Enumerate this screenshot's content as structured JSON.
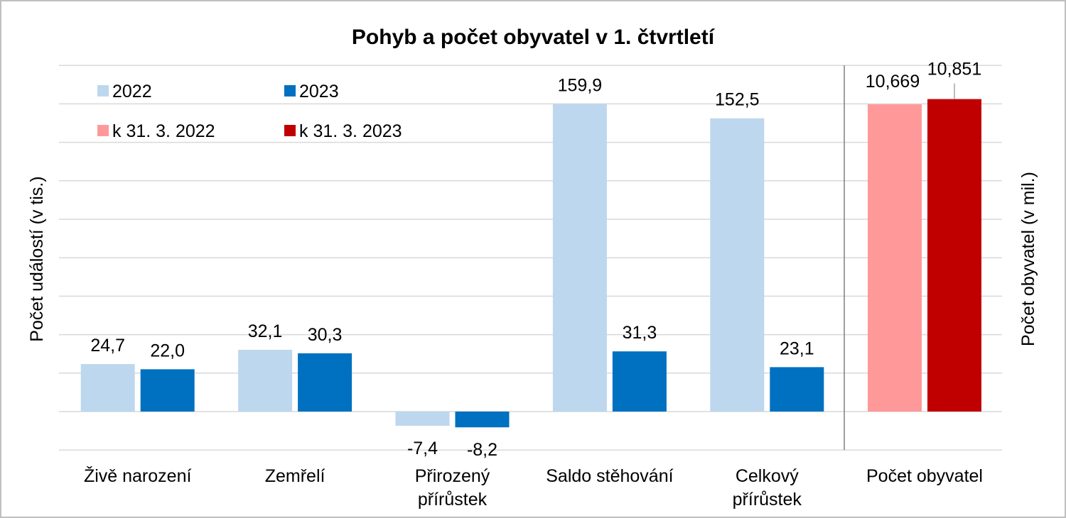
{
  "colors": {
    "y2022": "#bdd7ee",
    "y2023": "#0070c0",
    "pop2022": "#ff9999",
    "pop2023": "#c00000",
    "grid": "#d9d9d9",
    "frame": "#bfbfbf",
    "divider": "#7f7f7f"
  },
  "chart_data": {
    "type": "bar",
    "title": "Pohyb a počet obyvatel v 1. čtvrtletí",
    "ylabel_left": "Počet událostí (v tis.)",
    "ylabel_right": "Počet obyvatel (v mil.)",
    "ylim_left": [
      -20,
      180
    ],
    "ylim_right": [
      0,
      12
    ],
    "grid": true,
    "legend_position": "top-left",
    "categories": [
      [
        "Živě narození"
      ],
      [
        "Zemřelí"
      ],
      [
        "Přirozený",
        "přírůstek"
      ],
      [
        "Saldo stěhování"
      ],
      [
        "Celkový",
        "přírůstek"
      ]
    ],
    "series": [
      {
        "name": "2022",
        "values": [
          24.7,
          32.1,
          -7.4,
          159.9,
          152.5
        ],
        "labels": [
          "24,7",
          "32,1",
          "-7,4",
          "159,9",
          "152,5"
        ]
      },
      {
        "name": "2023",
        "values": [
          22.0,
          30.3,
          -8.2,
          31.3,
          23.1
        ],
        "labels": [
          "22,0",
          "30,3",
          "-8,2",
          "31,3",
          "23,1"
        ]
      }
    ],
    "secondary": {
      "category": "Počet obyvatel",
      "series": [
        {
          "name": "k 31. 3. 2022",
          "value": 10.669,
          "label": "10,669"
        },
        {
          "name": "k 31. 3. 2023",
          "value": 10.851,
          "label": "10,851"
        }
      ]
    }
  }
}
